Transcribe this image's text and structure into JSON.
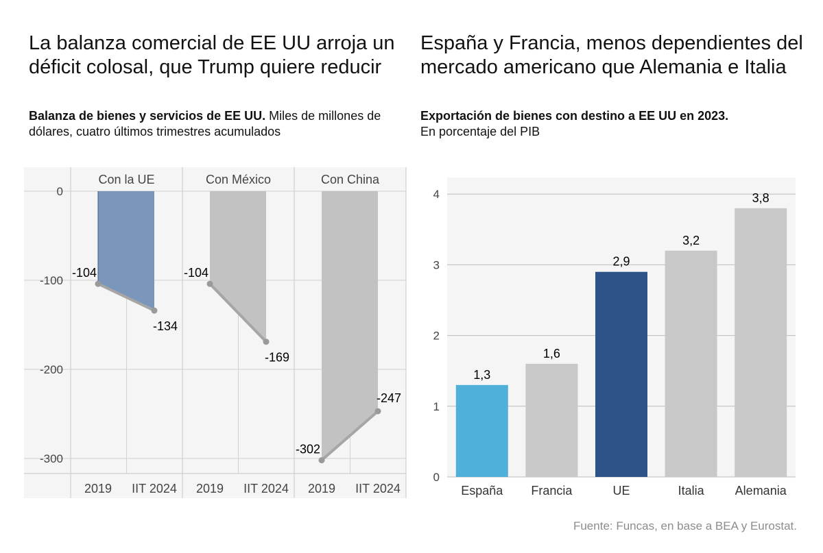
{
  "left_chart": {
    "title": "La balanza comercial de EE UU arroja un déficit colosal, que Trump quiere reducir",
    "subtitle_bold": "Balanza de bienes y servicios de EE UU.",
    "subtitle_rest": " Miles de millones de dólares, cuatro últimos trimestres acumulados"
  },
  "right_chart": {
    "title": "España y Francia, menos dependientes del mercado americano que Alemania e Italia",
    "subtitle_bold": "Exportación de bienes con destino a EE UU en 2023.",
    "subtitle_rest": "En porcentaje del PIB"
  },
  "source": "Fuente: Funcas, en base a BEA y Eurostat.",
  "colors": {
    "eu_area": "#7a96ba",
    "gray_area": "#c2c2c2",
    "line": "#a6a6a6",
    "bar_spain": "#4fb0da",
    "bar_eu": "#2d5389",
    "bar_gray": "#c8c8c8",
    "panel_bg": "#f5f5f5"
  },
  "chart_data": [
    {
      "type": "area",
      "title": "La balanza comercial de EE UU arroja un déficit colosal, que Trump quiere reducir",
      "x": [
        "2019",
        "IIT 2024"
      ],
      "ylim": [
        -315,
        10
      ],
      "yticks": [
        0,
        -100,
        -200,
        -300
      ],
      "grid": true,
      "facets": [
        {
          "name": "Con la UE",
          "values": [
            -104,
            -134
          ],
          "labels": [
            "-104",
            "-134"
          ],
          "color": "#7a96ba"
        },
        {
          "name": "Con México",
          "values": [
            -104,
            -169
          ],
          "labels": [
            "-104",
            "-169"
          ],
          "color": "#c2c2c2"
        },
        {
          "name": "Con China",
          "values": [
            -302,
            -247
          ],
          "labels": [
            "-302",
            "-247"
          ],
          "color": "#c2c2c2"
        }
      ]
    },
    {
      "type": "bar",
      "title": "España y Francia, menos dependientes del mercado americano que Alemania e Italia",
      "categories": [
        "España",
        "Francia",
        "UE",
        "Italia",
        "Alemania"
      ],
      "values": [
        1.3,
        1.6,
        2.9,
        3.2,
        3.8
      ],
      "labels": [
        "1,3",
        "1,6",
        "2,9",
        "3,2",
        "3,8"
      ],
      "colors": [
        "#4fb0da",
        "#c8c8c8",
        "#2d5389",
        "#c8c8c8",
        "#c8c8c8"
      ],
      "ylim": [
        0,
        4.2
      ],
      "yticks": [
        0,
        1,
        2,
        3,
        4
      ],
      "grid": true
    }
  ]
}
